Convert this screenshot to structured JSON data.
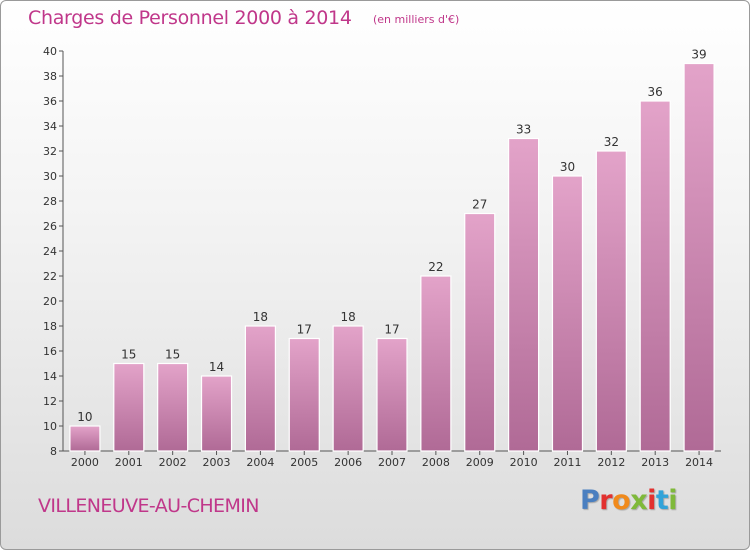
{
  "chart_data": {
    "type": "bar",
    "title": "Charges de Personnel 2000 à 2014",
    "subtitle": "(en milliers d'€)",
    "categories": [
      "2000",
      "2001",
      "2002",
      "2003",
      "2004",
      "2005",
      "2006",
      "2007",
      "2008",
      "2009",
      "2010",
      "2011",
      "2012",
      "2013",
      "2014"
    ],
    "values": [
      10,
      15,
      15,
      14,
      18,
      17,
      18,
      17,
      22,
      27,
      33,
      30,
      32,
      36,
      39
    ],
    "ylim": [
      8,
      40
    ],
    "yticks": [
      8,
      10,
      12,
      14,
      16,
      18,
      20,
      22,
      24,
      26,
      28,
      30,
      32,
      34,
      36,
      38,
      40
    ],
    "grid": false,
    "legend": "none",
    "colors": {
      "bar": "#e3a3c9",
      "bar_dark": "#b06a96",
      "accent": "#c0378a",
      "axis": "#555555"
    }
  },
  "footer": {
    "place": "VILLENEUVE-AU-CHEMIN",
    "logo_letters": [
      "P",
      "r",
      "o",
      "x",
      "i",
      "t",
      "i"
    ],
    "logo_colors": [
      "#4a7fc0",
      "#e2312f",
      "#f08a1c",
      "#7fb93a",
      "#e2312f",
      "#31a3d9",
      "#7fb93a"
    ]
  }
}
